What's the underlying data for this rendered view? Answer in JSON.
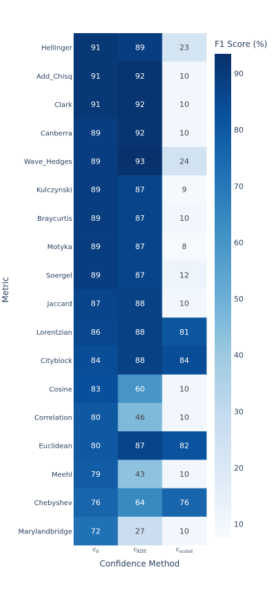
{
  "chart_data": {
    "type": "heatmap",
    "xlabel": "Confidence Method",
    "ylabel": "Metric",
    "colorbar_title": "F1 Score (%)",
    "columns": [
      {
        "base": "c",
        "sub": "d"
      },
      {
        "base": "c",
        "sub": "KDE"
      },
      {
        "base": "c",
        "sub": "scaled"
      }
    ],
    "rows": [
      "Hellinger",
      "Add_Chisq",
      "Clark",
      "Canberra",
      "Wave_Hedges",
      "Kulczynski",
      "Braycurtis",
      "Motyka",
      "Soergel",
      "Jaccard",
      "Lorentzian",
      "Cityblock",
      "Cosine",
      "Correlation",
      "Euclidean",
      "Meehl",
      "Chebyshev",
      "Marylandbridge"
    ],
    "values": [
      [
        91,
        89,
        23
      ],
      [
        91,
        92,
        10
      ],
      [
        91,
        92,
        10
      ],
      [
        89,
        92,
        10
      ],
      [
        89,
        93,
        24
      ],
      [
        89,
        87,
        9
      ],
      [
        89,
        87,
        10
      ],
      [
        89,
        87,
        8
      ],
      [
        89,
        87,
        12
      ],
      [
        87,
        88,
        10
      ],
      [
        86,
        88,
        81
      ],
      [
        84,
        88,
        84
      ],
      [
        83,
        60,
        10
      ],
      [
        80,
        46,
        10
      ],
      [
        80,
        87,
        82
      ],
      [
        79,
        43,
        10
      ],
      [
        76,
        64,
        76
      ],
      [
        72,
        27,
        10
      ]
    ],
    "zrange": [
      7.5,
      93.5
    ],
    "colorbar_ticks": [
      10,
      20,
      30,
      40,
      50,
      60,
      70,
      80,
      90
    ],
    "colorscale": "Blues",
    "colors": {
      "scale": [
        "#f7fbff",
        "#deebf7",
        "#c6dbef",
        "#9ecae1",
        "#6baed6",
        "#4292c6",
        "#2171b5",
        "#08519c",
        "#08306b"
      ],
      "text_light": "#ffffff",
      "text_dark": "#444444"
    }
  }
}
